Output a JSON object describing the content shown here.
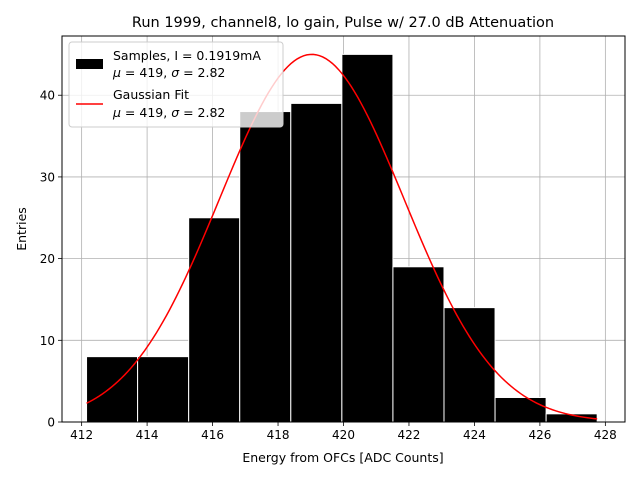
{
  "chart_data": {
    "type": "bar",
    "title": "Run 1999, channel8, lo gain, Pulse w/ 27.0 dB Attenuation",
    "xlabel": "Energy from OFCs [ADC Counts]",
    "ylabel": "Entries",
    "xlim": [
      411.4,
      428.6
    ],
    "ylim": [
      0,
      47.25
    ],
    "grid": true,
    "xticks": [
      412,
      414,
      416,
      418,
      420,
      422,
      424,
      426,
      428
    ],
    "yticks": [
      0,
      10,
      20,
      30,
      40
    ],
    "histogram": {
      "name": "Samples, I = 0.1919mA",
      "stats": "μ = 419, σ = 2.82",
      "color": "#000000",
      "edge_color": "#ffffff",
      "bin_edges": [
        412.15,
        413.71,
        415.27,
        416.83,
        418.39,
        419.95,
        421.51,
        423.07,
        424.63,
        426.19,
        427.75
      ],
      "counts": [
        8,
        8,
        25,
        38,
        39,
        45,
        19,
        14,
        3,
        1
      ]
    },
    "fit": {
      "name": "Gaussian Fit",
      "stats": "μ = 419, σ = 2.82",
      "color": "#ff0000",
      "mu": 419.03,
      "sigma": 2.82,
      "amplitude": 45.0,
      "x_range": [
        412.15,
        427.75
      ]
    },
    "legend_position": "upper-left"
  }
}
